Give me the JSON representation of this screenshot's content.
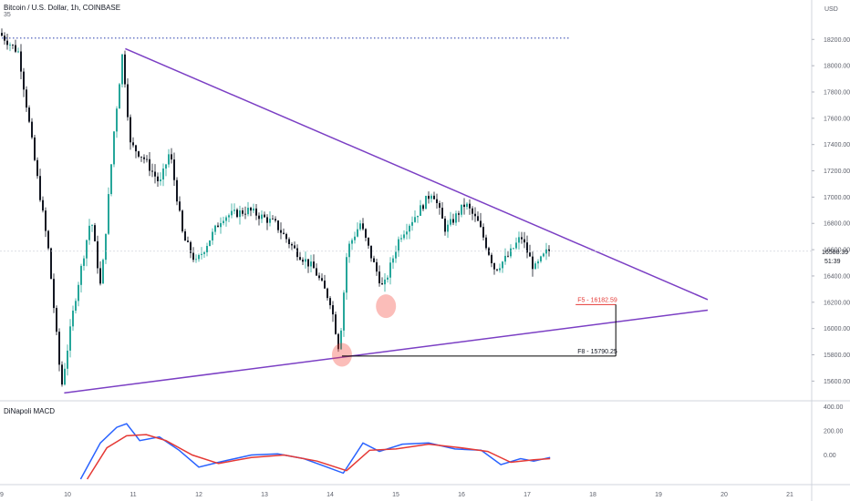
{
  "header": {
    "symbol_line": "Bitcoin / U.S. Dollar, 1h, COINBASE",
    "line2": "35"
  },
  "indicator": {
    "name": "DiNapoli MACD"
  },
  "colors": {
    "up": "#26a69a",
    "down": "#131722",
    "trendline": "#7b3fc4",
    "macd": "#2962ff",
    "signal": "#e53935",
    "fib_text": "#e53935",
    "level_line": "#000000",
    "dotted": "#3f51b5",
    "circle": "rgba(244,67,54,0.35)"
  },
  "chart_data": {
    "type": "candlestick",
    "axis_unit": "USD",
    "y_ticks": [
      15600,
      15800,
      16000,
      16200,
      16400,
      16600,
      16800,
      17000,
      17200,
      17400,
      17600,
      17800,
      18000,
      18200
    ],
    "y_tick_labels": [
      "15600.00",
      "15800.00",
      "16000.00",
      "16200.00",
      "16400.00",
      "16600.00",
      "16800.00",
      "17000.00",
      "17200.00",
      "17400.00",
      "17600.00",
      "17800.00",
      "18000.00",
      "18200.00"
    ],
    "ylim": [
      15450,
      18500
    ],
    "x_ticks": [
      "9",
      "10",
      "11",
      "12",
      "13",
      "14",
      "15",
      "16",
      "17",
      "18",
      "19",
      "20",
      "21"
    ],
    "last_price": {
      "value": 16588.39,
      "label": "16588.39",
      "countdown": "51:39"
    },
    "close_path": [
      {
        "day": 9.0,
        "price": 18250
      },
      {
        "day": 9.3,
        "price": 18100
      },
      {
        "day": 9.55,
        "price": 17250
      },
      {
        "day": 9.75,
        "price": 16600
      },
      {
        "day": 9.95,
        "price": 15550
      },
      {
        "day": 10.15,
        "price": 16200
      },
      {
        "day": 10.4,
        "price": 16850
      },
      {
        "day": 10.55,
        "price": 16300
      },
      {
        "day": 10.75,
        "price": 17500
      },
      {
        "day": 10.88,
        "price": 18100
      },
      {
        "day": 11.0,
        "price": 17400
      },
      {
        "day": 11.2,
        "price": 17300
      },
      {
        "day": 11.45,
        "price": 17100
      },
      {
        "day": 11.6,
        "price": 17350
      },
      {
        "day": 11.8,
        "price": 16700
      },
      {
        "day": 12.0,
        "price": 16500
      },
      {
        "day": 12.4,
        "price": 16850
      },
      {
        "day": 12.8,
        "price": 16900
      },
      {
        "day": 13.2,
        "price": 16800
      },
      {
        "day": 13.5,
        "price": 16600
      },
      {
        "day": 13.8,
        "price": 16450
      },
      {
        "day": 14.05,
        "price": 16200
      },
      {
        "day": 14.18,
        "price": 15830
      },
      {
        "day": 14.3,
        "price": 16600
      },
      {
        "day": 14.5,
        "price": 16800
      },
      {
        "day": 14.7,
        "price": 16500
      },
      {
        "day": 14.85,
        "price": 16300
      },
      {
        "day": 15.1,
        "price": 16700
      },
      {
        "day": 15.4,
        "price": 16900
      },
      {
        "day": 15.6,
        "price": 17050
      },
      {
        "day": 15.8,
        "price": 16750
      },
      {
        "day": 16.1,
        "price": 16950
      },
      {
        "day": 16.3,
        "price": 16800
      },
      {
        "day": 16.55,
        "price": 16450
      },
      {
        "day": 16.75,
        "price": 16550
      },
      {
        "day": 16.95,
        "price": 16700
      },
      {
        "day": 17.15,
        "price": 16450
      },
      {
        "day": 17.35,
        "price": 16590
      }
    ],
    "trendlines": [
      {
        "name": "upper",
        "from": {
          "day": 10.88,
          "price": 18130
        },
        "to": {
          "day": 19.75,
          "price": 16220
        }
      },
      {
        "name": "lower",
        "from": {
          "day": 9.95,
          "price": 15510
        },
        "to": {
          "day": 19.75,
          "price": 16140
        }
      }
    ],
    "resistance_dotted": {
      "price": 18210,
      "from_day": 9.0,
      "to_day": 17.65
    },
    "fib_levels": [
      {
        "label": "F5 - 16182.59",
        "price": 16182.59
      },
      {
        "label": "F8 - 15790.25",
        "price": 15790.25
      }
    ],
    "fib_bracket": {
      "from_day": 14.18,
      "to_day": 18.35
    },
    "circles": [
      {
        "day": 14.18,
        "price": 15800
      },
      {
        "day": 14.85,
        "price": 16170
      }
    ],
    "macd": {
      "y_ticks": [
        0,
        200,
        400
      ],
      "y_tick_labels": [
        "0.00",
        "200.00",
        "400.00"
      ],
      "ylim": [
        -200,
        420
      ],
      "macd_line": [
        {
          "day": 10.2,
          "value": -200
        },
        {
          "day": 10.5,
          "value": 100
        },
        {
          "day": 10.75,
          "value": 230
        },
        {
          "day": 10.9,
          "value": 260
        },
        {
          "day": 11.1,
          "value": 120
        },
        {
          "day": 11.4,
          "value": 150
        },
        {
          "day": 11.7,
          "value": 40
        },
        {
          "day": 12.0,
          "value": -100
        },
        {
          "day": 12.3,
          "value": -60
        },
        {
          "day": 12.8,
          "value": 0
        },
        {
          "day": 13.2,
          "value": 10
        },
        {
          "day": 13.6,
          "value": -30
        },
        {
          "day": 14.0,
          "value": -110
        },
        {
          "day": 14.2,
          "value": -150
        },
        {
          "day": 14.5,
          "value": 100
        },
        {
          "day": 14.75,
          "value": 30
        },
        {
          "day": 15.1,
          "value": 90
        },
        {
          "day": 15.5,
          "value": 100
        },
        {
          "day": 15.9,
          "value": 50
        },
        {
          "day": 16.3,
          "value": 40
        },
        {
          "day": 16.6,
          "value": -80
        },
        {
          "day": 16.9,
          "value": -30
        },
        {
          "day": 17.1,
          "value": -50
        },
        {
          "day": 17.35,
          "value": -20
        }
      ],
      "signal_line": [
        {
          "day": 10.3,
          "value": -200
        },
        {
          "day": 10.6,
          "value": 60
        },
        {
          "day": 10.9,
          "value": 160
        },
        {
          "day": 11.2,
          "value": 170
        },
        {
          "day": 11.5,
          "value": 120
        },
        {
          "day": 11.9,
          "value": 0
        },
        {
          "day": 12.3,
          "value": -70
        },
        {
          "day": 12.8,
          "value": -20
        },
        {
          "day": 13.3,
          "value": 0
        },
        {
          "day": 13.8,
          "value": -50
        },
        {
          "day": 14.25,
          "value": -130
        },
        {
          "day": 14.6,
          "value": 40
        },
        {
          "day": 15.0,
          "value": 50
        },
        {
          "day": 15.5,
          "value": 90
        },
        {
          "day": 16.0,
          "value": 60
        },
        {
          "day": 16.4,
          "value": 30
        },
        {
          "day": 16.75,
          "value": -60
        },
        {
          "day": 17.1,
          "value": -40
        },
        {
          "day": 17.35,
          "value": -30
        }
      ]
    }
  }
}
